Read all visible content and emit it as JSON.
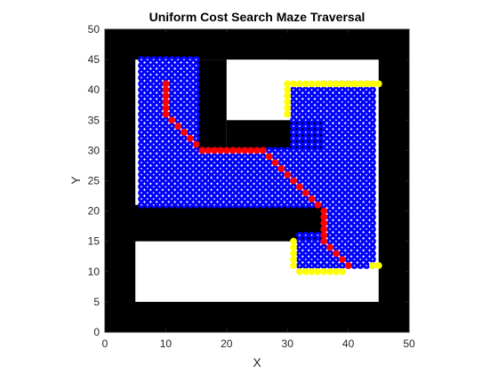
{
  "chart_data": {
    "type": "scatter",
    "title": "Uniform Cost Search Maze Traversal",
    "xlabel": "X",
    "ylabel": "Y",
    "xlim": [
      0,
      50
    ],
    "ylim": [
      0,
      50
    ],
    "xticks": [
      0,
      10,
      20,
      30,
      40,
      50
    ],
    "yticks": [
      0,
      5,
      10,
      15,
      20,
      25,
      30,
      35,
      40,
      45,
      50
    ],
    "colors": {
      "wall": "#000000",
      "free": "#ffffff",
      "explored": "#0000ff",
      "explored_center": "#ffffff",
      "frontier": "#ffff00",
      "path": "#ff0000"
    },
    "maze": {
      "outer_wall": [
        0,
        50,
        0,
        50
      ],
      "open_regions": [
        [
          5,
          45,
          5,
          15
        ],
        [
          5,
          45,
          21,
          45
        ],
        [
          36,
          45,
          15,
          21
        ]
      ],
      "interior_walls": [
        [
          15,
          20,
          30,
          45
        ],
        [
          20,
          36,
          30,
          35
        ],
        [
          30,
          45,
          45,
          50
        ]
      ]
    },
    "explored_regions": [
      [
        6,
        15,
        21,
        45
      ],
      [
        15,
        35,
        21,
        30
      ],
      [
        15,
        26,
        30,
        30
      ],
      [
        31,
        35,
        30,
        40
      ],
      [
        36,
        44,
        11,
        41
      ],
      [
        32,
        35,
        11,
        16
      ]
    ],
    "frontier_points": [
      [
        30,
        41
      ],
      [
        31,
        41
      ],
      [
        32,
        41
      ],
      [
        33,
        41
      ],
      [
        34,
        41
      ],
      [
        35,
        41
      ],
      [
        36,
        41
      ],
      [
        37,
        41
      ],
      [
        38,
        41
      ],
      [
        39,
        41
      ],
      [
        40,
        41
      ],
      [
        41,
        41
      ],
      [
        42,
        41
      ],
      [
        43,
        41
      ],
      [
        44,
        41
      ],
      [
        45,
        41
      ],
      [
        30,
        40
      ],
      [
        30,
        39
      ],
      [
        30,
        38
      ],
      [
        30,
        37
      ],
      [
        30,
        36
      ],
      [
        31,
        15
      ],
      [
        31,
        14
      ],
      [
        31,
        13
      ],
      [
        31,
        12
      ],
      [
        31,
        11
      ],
      [
        32,
        10
      ],
      [
        33,
        10
      ],
      [
        34,
        10
      ],
      [
        35,
        10
      ],
      [
        36,
        10
      ],
      [
        37,
        10
      ],
      [
        38,
        10
      ],
      [
        39,
        10
      ],
      [
        45,
        11
      ],
      [
        44,
        11
      ]
    ],
    "path_points": [
      [
        10,
        41
      ],
      [
        10,
        40
      ],
      [
        10,
        39
      ],
      [
        10,
        38
      ],
      [
        10,
        37
      ],
      [
        10,
        36
      ],
      [
        11,
        35
      ],
      [
        12,
        34
      ],
      [
        13,
        33
      ],
      [
        14,
        32
      ],
      [
        15,
        31
      ],
      [
        16,
        30
      ],
      [
        17,
        30
      ],
      [
        18,
        30
      ],
      [
        19,
        30
      ],
      [
        20,
        30
      ],
      [
        21,
        30
      ],
      [
        22,
        30
      ],
      [
        23,
        30
      ],
      [
        24,
        30
      ],
      [
        25,
        30
      ],
      [
        26,
        30
      ],
      [
        27,
        29
      ],
      [
        28,
        28
      ],
      [
        29,
        27
      ],
      [
        30,
        26
      ],
      [
        31,
        25
      ],
      [
        32,
        24
      ],
      [
        33,
        23
      ],
      [
        34,
        22
      ],
      [
        35,
        21
      ],
      [
        36,
        20
      ],
      [
        36,
        19
      ],
      [
        36,
        18
      ],
      [
        36,
        17
      ],
      [
        36,
        16
      ],
      [
        36,
        15
      ],
      [
        37,
        14
      ],
      [
        38,
        13
      ],
      [
        39,
        12
      ],
      [
        40,
        11
      ]
    ]
  }
}
